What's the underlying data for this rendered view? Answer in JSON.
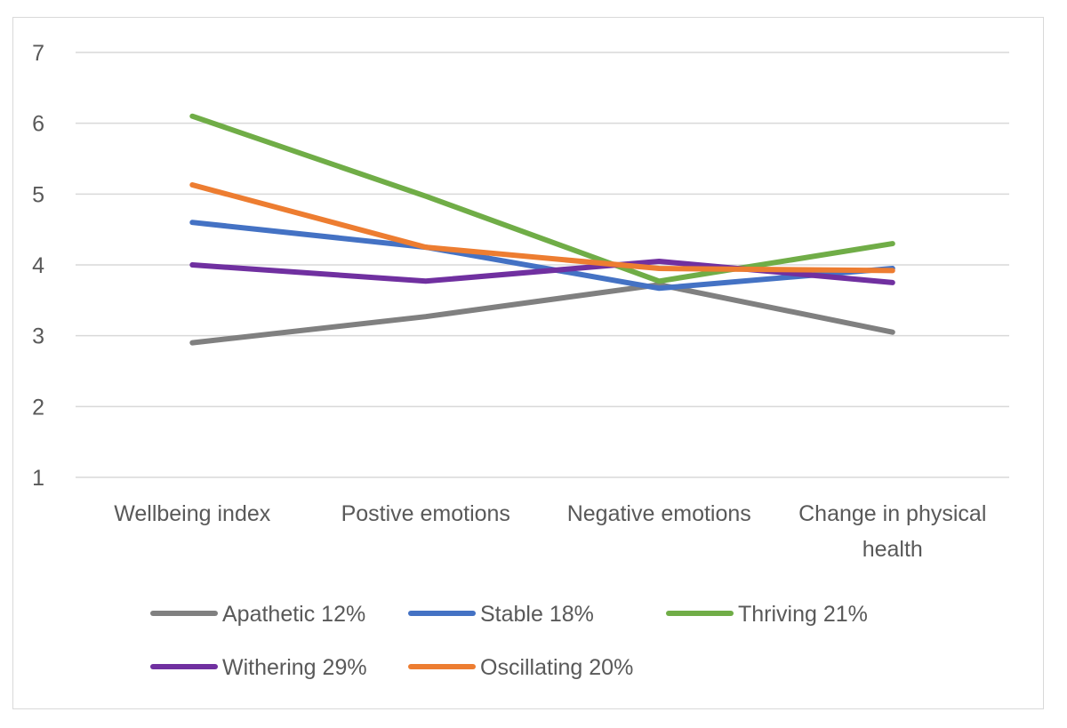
{
  "chart_data": {
    "type": "line",
    "title": "",
    "xlabel": "",
    "ylabel": "",
    "ylim": [
      1,
      7
    ],
    "yticks": [
      1,
      2,
      3,
      4,
      5,
      6,
      7
    ],
    "grid": true,
    "legend_position": "bottom",
    "categories": [
      [
        "Wellbeing index"
      ],
      [
        "Postive emotions"
      ],
      [
        "Negative emotions"
      ],
      [
        "Change in physical",
        "health"
      ]
    ],
    "series": [
      {
        "name": "Apathetic 12%",
        "color": "#808080",
        "values": [
          2.9,
          3.27,
          3.72,
          3.05
        ]
      },
      {
        "name": "Stable 18%",
        "color": "#4472c4",
        "values": [
          4.6,
          4.25,
          3.67,
          3.95
        ]
      },
      {
        "name": "Thriving 21%",
        "color": "#70ad47",
        "values": [
          6.1,
          4.97,
          3.77,
          4.3
        ]
      },
      {
        "name": "Withering 29%",
        "color": "#7030a0",
        "values": [
          4.0,
          3.77,
          4.05,
          3.75
        ]
      },
      {
        "name": "Oscillating 20%",
        "color": "#ed7d31",
        "values": [
          5.13,
          4.25,
          3.95,
          3.92
        ]
      }
    ]
  }
}
